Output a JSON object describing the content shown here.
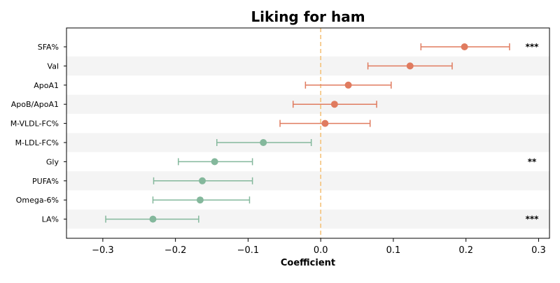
{
  "chart_data": {
    "type": "scatter",
    "title": "Liking for ham",
    "xlabel": "Coefficient",
    "ylabel": "",
    "xlim": [
      -0.35,
      0.315
    ],
    "xticks": [
      -0.3,
      -0.2,
      -0.1,
      0.0,
      0.1,
      0.2,
      0.3
    ],
    "xtick_labels": [
      "−0.3",
      "−0.2",
      "−0.1",
      "0.0",
      "0.1",
      "0.2",
      "0.3"
    ],
    "reference_line": {
      "x": 0.0,
      "style": "dashed",
      "color": "#f5c27a"
    },
    "grid": false,
    "alternating_row_bands": true,
    "colors": {
      "positive": "#e07b5f",
      "negative": "#84b89c",
      "band": "#f4f4f4"
    },
    "series": [
      {
        "categories": [
          "SFA%",
          "Val",
          "ApoA1",
          "ApoB/ApoA1",
          "M-VLDL-FC%",
          "M-LDL-FC%",
          "Gly",
          "PUFA%",
          "Omega-6%",
          "LA%"
        ],
        "estimate": [
          0.198,
          0.123,
          0.038,
          0.019,
          0.006,
          -0.079,
          -0.146,
          -0.163,
          -0.166,
          -0.231
        ],
        "ci_lower": [
          0.138,
          0.065,
          -0.021,
          -0.038,
          -0.056,
          -0.143,
          -0.196,
          -0.23,
          -0.231,
          -0.296
        ],
        "ci_upper": [
          0.26,
          0.181,
          0.097,
          0.077,
          0.068,
          -0.013,
          -0.094,
          -0.094,
          -0.098,
          -0.168
        ],
        "significance": [
          "***",
          "",
          "",
          "",
          "",
          "",
          "**",
          "",
          "",
          "***"
        ]
      }
    ]
  }
}
